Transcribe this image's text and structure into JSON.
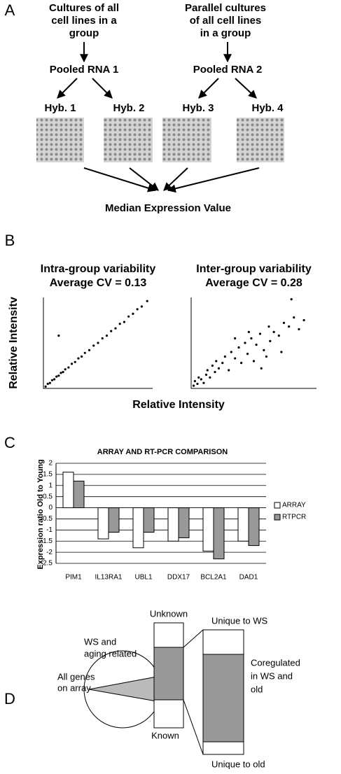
{
  "panel_labels": [
    "A",
    "B",
    "C",
    "D"
  ],
  "diagram_a": {
    "left_group": [
      "Cultures of all",
      "cell lines  in a",
      "group"
    ],
    "right_group": [
      "Parallel cultures",
      "of all cell lines",
      "in a group"
    ],
    "pools": [
      "Pooled RNA 1",
      "Pooled RNA 2"
    ],
    "hybs": [
      "Hyb. 1",
      "Hyb. 2",
      "Hyb. 3",
      "Hyb. 4"
    ],
    "result": "Median Expression Value"
  },
  "panel_b": {
    "y_label": "Relative Intensitv",
    "x_label": "Relative Intensity"
  },
  "chart_data": [
    {
      "type": "scatter",
      "title": [
        "Intra-group variability",
        "Average CV = 0.13"
      ],
      "x": [
        0.02,
        0.04,
        0.06,
        0.08,
        0.1,
        0.12,
        0.14,
        0.16,
        0.18,
        0.2,
        0.23,
        0.26,
        0.29,
        0.32,
        0.35,
        0.38,
        0.42,
        0.46,
        0.5,
        0.54,
        0.58,
        0.62,
        0.66,
        0.7,
        0.74,
        0.78,
        0.82,
        0.86,
        0.9,
        0.95,
        0.14
      ],
      "y": [
        0.02,
        0.05,
        0.06,
        0.09,
        0.1,
        0.13,
        0.14,
        0.17,
        0.18,
        0.21,
        0.23,
        0.27,
        0.29,
        0.33,
        0.35,
        0.39,
        0.42,
        0.47,
        0.5,
        0.55,
        0.58,
        0.63,
        0.66,
        0.71,
        0.73,
        0.79,
        0.82,
        0.87,
        0.9,
        0.96,
        0.58
      ],
      "xlim": [
        0,
        1
      ],
      "ylim": [
        0,
        1
      ],
      "color": "#000"
    },
    {
      "type": "scatter",
      "title": [
        "Inter-group variability",
        "Average CV = 0.28"
      ],
      "x": [
        0.02,
        0.03,
        0.05,
        0.06,
        0.08,
        0.1,
        0.12,
        0.13,
        0.15,
        0.17,
        0.19,
        0.2,
        0.22,
        0.25,
        0.27,
        0.3,
        0.32,
        0.35,
        0.38,
        0.4,
        0.43,
        0.45,
        0.48,
        0.5,
        0.52,
        0.55,
        0.58,
        0.6,
        0.63,
        0.66,
        0.7,
        0.74,
        0.78,
        0.82,
        0.86,
        0.9,
        0.72,
        0.8,
        0.46,
        0.56,
        0.35,
        0.62
      ],
      "y": [
        0.03,
        0.08,
        0.05,
        0.12,
        0.1,
        0.06,
        0.15,
        0.2,
        0.12,
        0.25,
        0.18,
        0.3,
        0.22,
        0.28,
        0.35,
        0.2,
        0.4,
        0.33,
        0.45,
        0.28,
        0.5,
        0.38,
        0.55,
        0.3,
        0.48,
        0.6,
        0.42,
        0.35,
        0.52,
        0.62,
        0.58,
        0.72,
        0.68,
        0.78,
        0.65,
        0.75,
        0.4,
        0.98,
        0.62,
        0.22,
        0.55,
        0.68
      ],
      "xlim": [
        0,
        1
      ],
      "ylim": [
        0,
        1
      ],
      "color": "#000"
    },
    {
      "type": "bar",
      "title": "ARRAY AND RT-PCR COMPARISON",
      "y_label": "Expression ratio Old to Young",
      "categories": [
        "PIM1",
        "IL13RA1",
        "UBL1",
        "DDX17",
        "BCL2A1",
        "DAD1"
      ],
      "series": [
        {
          "name": "ARRAY",
          "color": "#ffffff",
          "values": [
            1.6,
            -1.4,
            -1.8,
            -1.5,
            -1.95,
            -1.5
          ]
        },
        {
          "name": "RTPCR",
          "color": "#999999",
          "values": [
            1.2,
            -1.1,
            -1.1,
            -1.35,
            -2.3,
            -1.7
          ]
        }
      ],
      "ylim": [
        -2.5,
        2
      ],
      "yticks": [
        -2.5,
        -2,
        -1.5,
        -1,
        -0.5,
        0,
        0.5,
        1,
        1.5,
        2
      ],
      "grid": true,
      "legend": "right"
    }
  ],
  "diagram_d": {
    "pie_inner": [
      "All genes",
      "on array"
    ],
    "pie_slice": [
      "WS and",
      "aging related"
    ],
    "bar1_top": "Unknown",
    "bar1_bottom": "Known",
    "bar2_top": "Unique  to WS",
    "bar2_middle": [
      "Coregulated",
      "in WS and",
      "old"
    ],
    "bar2_bottom": "Unique  to old"
  }
}
